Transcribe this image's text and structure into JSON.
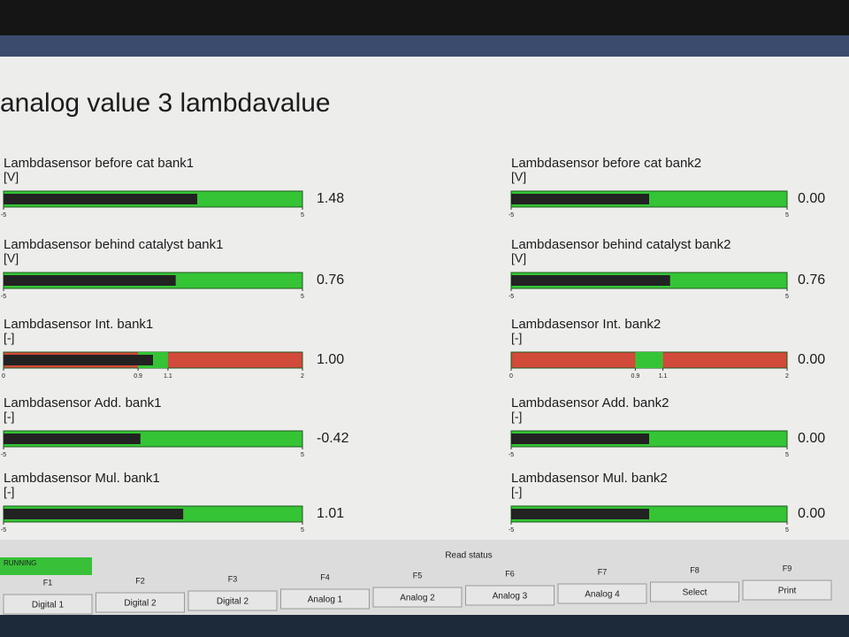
{
  "title": "analog value 3 lambdavalue",
  "gauges": {
    "bank1": [
      {
        "label": "Lambdasensor before cat bank1",
        "unit": "[V]",
        "ticks": [
          -5,
          5
        ],
        "value": 1.48,
        "value_label": "1.48"
      },
      {
        "label": "Lambdasensor behind catalyst bank1",
        "unit": "[V]",
        "ticks": [
          -5,
          5
        ],
        "value": 0.76,
        "value_label": "0.76"
      },
      {
        "label": "Lambdasensor Int. bank1",
        "unit": "[-]",
        "ticks": [
          0,
          0.9,
          1.1,
          2
        ],
        "value": 1.0,
        "value_label": "1.00",
        "scale_color": "red"
      },
      {
        "label": "Lambdasensor Add. bank1",
        "unit": "[-]",
        "ticks": [
          -5,
          5
        ],
        "value": -0.42,
        "value_label": "-0.42"
      },
      {
        "label": "Lambdasensor Mul. bank1",
        "unit": "[-]",
        "ticks": [
          -5,
          5
        ],
        "value": 1.01,
        "value_label": "1.01"
      }
    ],
    "bank2": [
      {
        "label": "Lambdasensor before cat bank2",
        "unit": "[V]",
        "ticks": [
          -5,
          5
        ],
        "value": 0,
        "value_label": "0.00"
      },
      {
        "label": "Lambdasensor behind catalyst bank2",
        "unit": "[V]",
        "ticks": [
          -5,
          5
        ],
        "value": 0.76,
        "value_label": "0.76"
      },
      {
        "label": "Lambdasensor Int. bank2",
        "unit": "[-]",
        "ticks": [
          0,
          0.9,
          1.1,
          2
        ],
        "value": 0,
        "value_label": "0.00",
        "scale_color": "red"
      },
      {
        "label": "Lambdasensor Add. bank2",
        "unit": "[-]",
        "ticks": [
          -5,
          5
        ],
        "value": 0,
        "value_label": "0.00"
      },
      {
        "label": "Lambdasensor Mul. bank2",
        "unit": "[-]",
        "ticks": [
          -5,
          5
        ],
        "value": 0,
        "value_label": "0.00"
      }
    ]
  },
  "status": {
    "heading": "Read status",
    "state": "RUNNING"
  },
  "function_keys": [
    {
      "key": "F1",
      "label": "Digital 1"
    },
    {
      "key": "F2",
      "label": "Digital 2"
    },
    {
      "key": "F3",
      "label": "Digital 2"
    },
    {
      "key": "F4",
      "label": "Analog 1"
    },
    {
      "key": "F5",
      "label": "Analog 2"
    },
    {
      "key": "F6",
      "label": "Analog 3"
    },
    {
      "key": "F7",
      "label": "Analog 4"
    },
    {
      "key": "F8",
      "label": "Select"
    },
    {
      "key": "F9",
      "label": "Print"
    }
  ]
}
